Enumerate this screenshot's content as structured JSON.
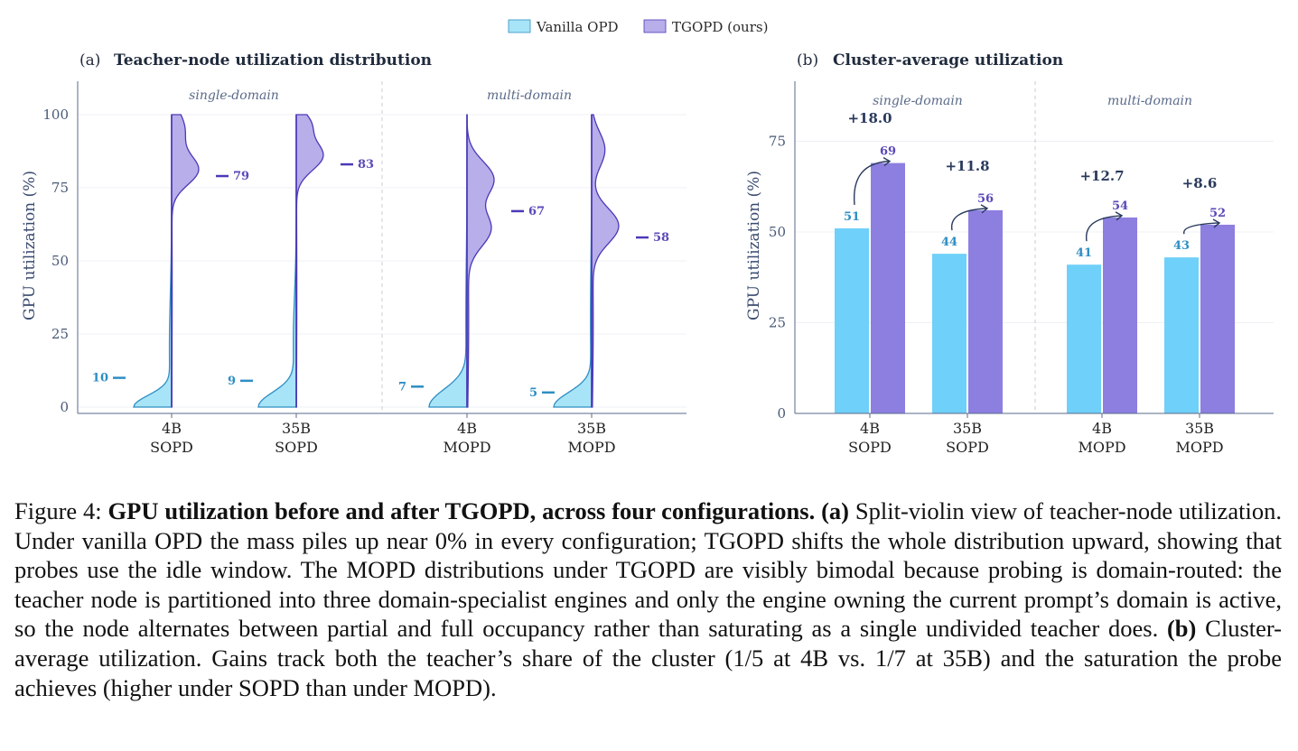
{
  "legend": {
    "items": [
      {
        "label": "Vanilla OPD",
        "color": "#a8e4f7"
      },
      {
        "label": "TGOPD (ours)",
        "color": "#b7aeea"
      }
    ]
  },
  "panel_a": {
    "tag": "(a)",
    "title": "Teacher-node utilization distribution",
    "groups": [
      "single-domain",
      "multi-domain"
    ],
    "ylabel": "GPU utilization (%)"
  },
  "panel_b": {
    "tag": "(b)",
    "title": "Cluster-average utilization",
    "groups": [
      "single-domain",
      "multi-domain"
    ],
    "ylabel": "GPU utilization (%)"
  },
  "colors": {
    "vanilla_fill": "#a8e4f7",
    "vanilla_line": "#2e8ec4",
    "tgopd_fill": "#b7aeea",
    "tgopd_line": "#4a3ab8",
    "vanilla_bar": "#6fd0f9",
    "tgopd_bar": "#8c7fe0",
    "axis": "#5a6a8a",
    "grid": "#eef0f4"
  },
  "chart_data": [
    {
      "type": "violin",
      "title": "Teacher-node utilization distribution",
      "ylabel": "GPU utilization (%)",
      "ylim": [
        0,
        100
      ],
      "yticks": [
        0,
        25,
        50,
        75,
        100
      ],
      "categories": [
        "4B\nSOPD",
        "35B\nSOPD",
        "4B\nMOPD",
        "35B\nMOPD"
      ],
      "groups": [
        "single-domain",
        "single-domain",
        "multi-domain",
        "multi-domain"
      ],
      "series": [
        {
          "name": "Vanilla OPD",
          "means": [
            10,
            9,
            7,
            5
          ]
        },
        {
          "name": "TGOPD (ours)",
          "means": [
            79,
            83,
            67,
            58
          ]
        }
      ]
    },
    {
      "type": "bar",
      "title": "Cluster-average utilization",
      "ylabel": "GPU utilization (%)",
      "ylim": [
        0,
        90
      ],
      "yticks": [
        0,
        25,
        50,
        75
      ],
      "categories": [
        "4B\nSOPD",
        "35B\nSOPD",
        "4B\nMOPD",
        "35B\nMOPD"
      ],
      "groups": [
        "single-domain",
        "single-domain",
        "multi-domain",
        "multi-domain"
      ],
      "series": [
        {
          "name": "Vanilla OPD",
          "values": [
            51,
            44,
            41,
            43
          ]
        },
        {
          "name": "TGOPD (ours)",
          "values": [
            69,
            56,
            54,
            52
          ]
        }
      ],
      "gains": [
        "+18.0",
        "+11.8",
        "+12.7",
        "+8.6"
      ]
    }
  ],
  "caption": {
    "label": "Figure 4:",
    "bold_title": "GPU utilization before and after TGOPD, across four configurations.",
    "a_tag": "(a)",
    "a_text": "Split-violin view of teacher-node utilization. Under vanilla OPD the mass piles up near 0% in every configuration; TGOPD shifts the whole distribution upward, showing that probes use the idle window. The MOPD distributions under TGOPD are visibly bimodal because probing is domain-routed: the teacher node is partitioned into three domain-specialist engines and only the engine owning the current prompt’s domain is active, so the node alternates between partial and full occupancy rather than saturating as a single undivided teacher does.",
    "b_tag": "(b)",
    "b_text": "Cluster-average utilization. Gains track both the teacher’s share of the cluster (1/5 at 4B vs. 1/7 at 35B) and the saturation the probe achieves (higher under SOPD than under MOPD)."
  }
}
